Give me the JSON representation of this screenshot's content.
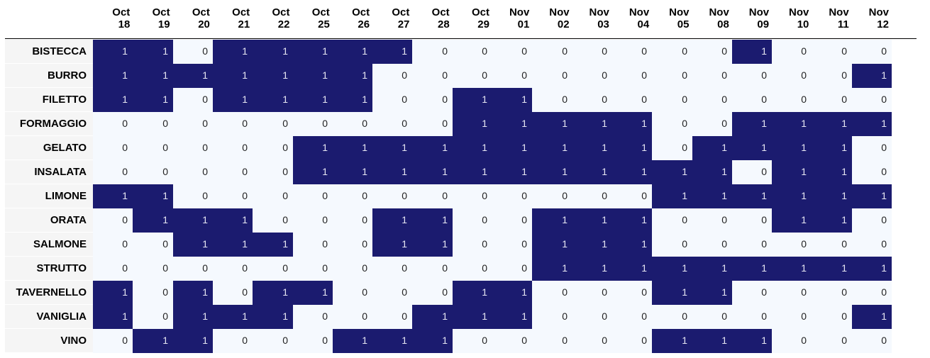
{
  "chart_data": {
    "type": "heatmap",
    "colors": {
      "one": "#1b1b6f",
      "zero": "#f5f9fe",
      "one_text": "#e6e6f2",
      "zero_text": "#222222"
    },
    "columns": [
      {
        "month": "Oct",
        "day": "18"
      },
      {
        "month": "Oct",
        "day": "19"
      },
      {
        "month": "Oct",
        "day": "20"
      },
      {
        "month": "Oct",
        "day": "21"
      },
      {
        "month": "Oct",
        "day": "22"
      },
      {
        "month": "Oct",
        "day": "25"
      },
      {
        "month": "Oct",
        "day": "26"
      },
      {
        "month": "Oct",
        "day": "27"
      },
      {
        "month": "Oct",
        "day": "28"
      },
      {
        "month": "Oct",
        "day": "29"
      },
      {
        "month": "Nov",
        "day": "01"
      },
      {
        "month": "Nov",
        "day": "02"
      },
      {
        "month": "Nov",
        "day": "03"
      },
      {
        "month": "Nov",
        "day": "04"
      },
      {
        "month": "Nov",
        "day": "05"
      },
      {
        "month": "Nov",
        "day": "08"
      },
      {
        "month": "Nov",
        "day": "09"
      },
      {
        "month": "Nov",
        "day": "10"
      },
      {
        "month": "Nov",
        "day": "11"
      },
      {
        "month": "Nov",
        "day": "12"
      }
    ],
    "rows": [
      {
        "label": "BISTECCA",
        "values": [
          1,
          1,
          0,
          1,
          1,
          1,
          1,
          1,
          0,
          0,
          0,
          0,
          0,
          0,
          0,
          0,
          1,
          0,
          0,
          0
        ]
      },
      {
        "label": "BURRO",
        "values": [
          1,
          1,
          1,
          1,
          1,
          1,
          1,
          0,
          0,
          0,
          0,
          0,
          0,
          0,
          0,
          0,
          0,
          0,
          0,
          1
        ]
      },
      {
        "label": "FILETTO",
        "values": [
          1,
          1,
          0,
          1,
          1,
          1,
          1,
          0,
          0,
          1,
          1,
          0,
          0,
          0,
          0,
          0,
          0,
          0,
          0,
          0
        ]
      },
      {
        "label": "FORMAGGIO",
        "values": [
          0,
          0,
          0,
          0,
          0,
          0,
          0,
          0,
          0,
          1,
          1,
          1,
          1,
          1,
          0,
          0,
          1,
          1,
          1,
          1
        ]
      },
      {
        "label": "GELATO",
        "values": [
          0,
          0,
          0,
          0,
          0,
          1,
          1,
          1,
          1,
          1,
          1,
          1,
          1,
          1,
          0,
          1,
          1,
          1,
          1,
          0
        ]
      },
      {
        "label": "INSALATA",
        "values": [
          0,
          0,
          0,
          0,
          0,
          1,
          1,
          1,
          1,
          1,
          1,
          1,
          1,
          1,
          1,
          1,
          0,
          1,
          1,
          0
        ]
      },
      {
        "label": "LIMONE",
        "values": [
          1,
          1,
          0,
          0,
          0,
          0,
          0,
          0,
          0,
          0,
          0,
          0,
          0,
          0,
          1,
          1,
          1,
          1,
          1,
          1
        ]
      },
      {
        "label": "ORATA",
        "values": [
          0,
          1,
          1,
          1,
          0,
          0,
          0,
          1,
          1,
          0,
          0,
          1,
          1,
          1,
          0,
          0,
          0,
          1,
          1,
          0
        ]
      },
      {
        "label": "SALMONE",
        "values": [
          0,
          0,
          1,
          1,
          1,
          0,
          0,
          1,
          1,
          0,
          0,
          1,
          1,
          1,
          0,
          0,
          0,
          0,
          0,
          0
        ]
      },
      {
        "label": "STRUTTO",
        "values": [
          0,
          0,
          0,
          0,
          0,
          0,
          0,
          0,
          0,
          0,
          0,
          1,
          1,
          1,
          1,
          1,
          1,
          1,
          1,
          1
        ]
      },
      {
        "label": "TAVERNELLO",
        "values": [
          1,
          0,
          1,
          0,
          1,
          1,
          0,
          0,
          0,
          1,
          1,
          0,
          0,
          0,
          1,
          1,
          0,
          0,
          0,
          0
        ]
      },
      {
        "label": "VANIGLIA",
        "values": [
          1,
          0,
          1,
          1,
          1,
          0,
          0,
          0,
          1,
          1,
          1,
          0,
          0,
          0,
          0,
          0,
          0,
          0,
          0,
          1
        ]
      },
      {
        "label": "VINO",
        "values": [
          0,
          1,
          1,
          0,
          0,
          0,
          1,
          1,
          1,
          0,
          0,
          0,
          0,
          0,
          1,
          1,
          1,
          0,
          0,
          0
        ]
      }
    ]
  }
}
